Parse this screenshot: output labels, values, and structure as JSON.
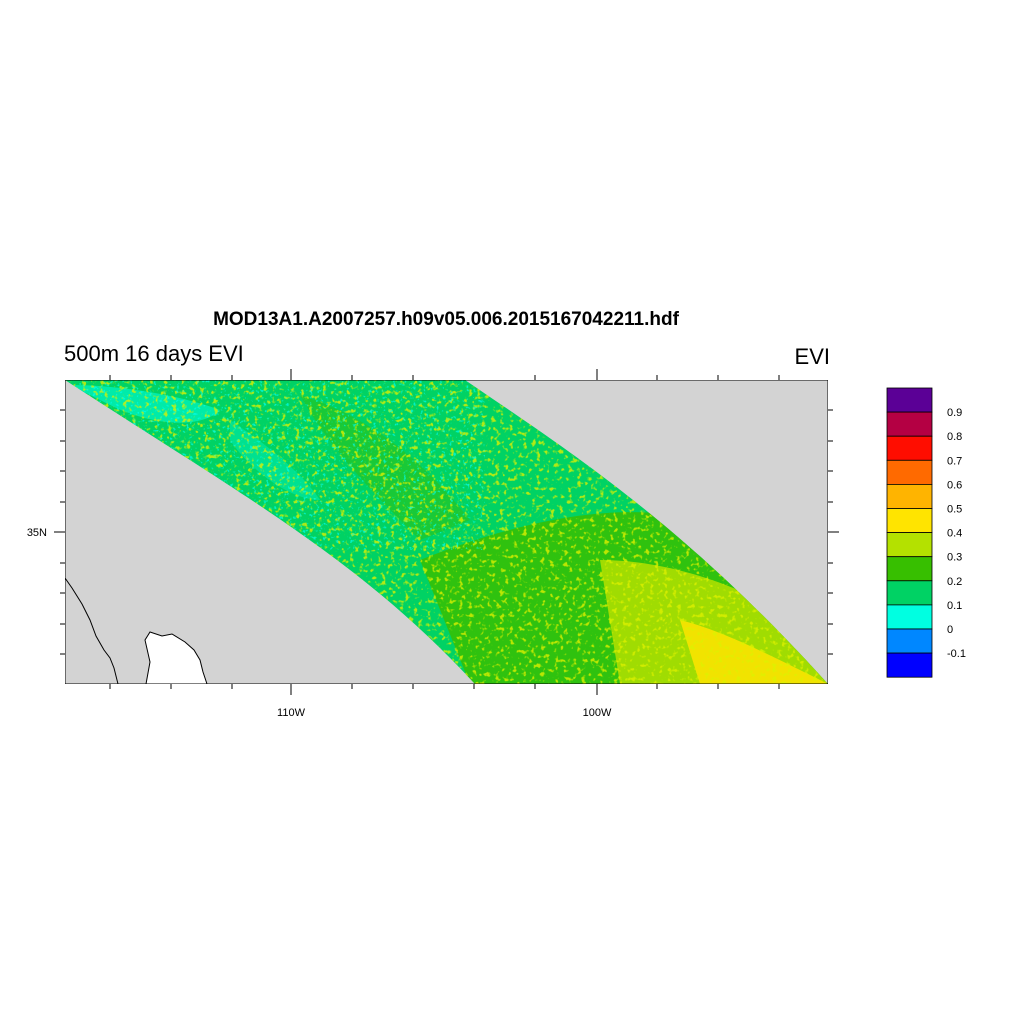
{
  "figure": {
    "title": "MOD13A1.A2007257.h09v05.006.2015167042211.hdf",
    "left_string": "500m 16 days EVI",
    "right_string": "EVI"
  },
  "chart_data": {
    "type": "heatmap",
    "title": "MOD13A1.A2007257.h09v05.006.2015167042211.hdf",
    "subtitle": "500m 16 days EVI",
    "variable": "EVI",
    "map": {
      "lon_range": [
        -117.5,
        -92.5
      ],
      "lat_range": [
        30,
        40
      ],
      "x_tick_labels": [
        "110W",
        "100W"
      ],
      "x_tick_values": [
        -110,
        -100
      ],
      "y_tick_labels": [
        "35N"
      ],
      "y_tick_values": [
        35
      ],
      "missing_color": "#d3d3d3"
    },
    "colorbar": {
      "labels": [
        "0.9",
        "0.8",
        "0.7",
        "0.6",
        "0.5",
        "0.4",
        "0.3",
        "0.2",
        "0.1",
        "0",
        "-0.1"
      ],
      "colors": [
        "#5b0096",
        "#b40043",
        "#ff0d00",
        "#ff6a00",
        "#ffb400",
        "#ffe400",
        "#b4e100",
        "#37bf00",
        "#00d264",
        "#00ffe1",
        "#0087ff",
        "#0000ff"
      ]
    },
    "colors": {
      "land_gray": "#d3d3d3",
      "frame": "#000000"
    }
  }
}
